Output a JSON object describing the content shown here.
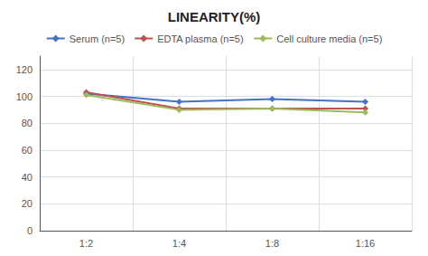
{
  "chart_data": {
    "type": "line",
    "title": "LINEARITY(%)",
    "categories": [
      "1:2",
      "1:4",
      "1:8",
      "1:16"
    ],
    "series": [
      {
        "name": "Serum (n=5)",
        "color": "#4472C4",
        "marker": "diamond",
        "values": [
          102,
          96,
          98,
          96
        ]
      },
      {
        "name": "EDTA plasma (n=5)",
        "color": "#C0504D",
        "marker": "diamond",
        "values": [
          103,
          91,
          91,
          91
        ]
      },
      {
        "name": "Cell culture media (n=5)",
        "color": "#9BBB59",
        "marker": "diamond",
        "values": [
          101,
          90,
          91,
          88
        ]
      }
    ],
    "ylim": [
      0,
      130
    ],
    "yticks": [
      0,
      20,
      40,
      60,
      80,
      100,
      120
    ],
    "grid": true,
    "legend": "top"
  }
}
